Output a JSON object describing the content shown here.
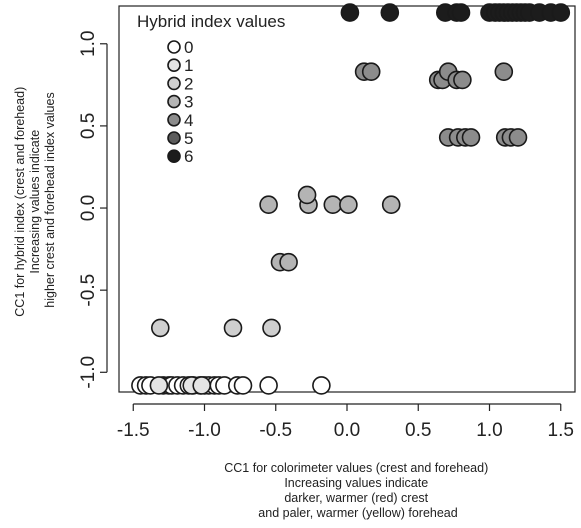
{
  "chart_data": {
    "type": "scatter",
    "title": "",
    "xlabel_lines": [
      "CC1 for colorimeter values (crest and forehead)",
      "Increasing values indicate",
      "darker, warmer (red) crest",
      "and paler, warmer (yellow) forehead"
    ],
    "ylabel_lines": [
      "CC1 for hybrid index (crest and forehead)",
      "Increasing values indicate",
      "higher crest and forehead index values"
    ],
    "xlim": [
      -1.6,
      1.6
    ],
    "ylim": [
      -1.12,
      1.23
    ],
    "xticks": [
      -1.5,
      -1.0,
      -0.5,
      0.0,
      0.5,
      1.0,
      1.5
    ],
    "xtick_labels": [
      "-1.5",
      "-1.0",
      "-0.5",
      "0.0",
      "0.5",
      "1.0",
      "1.5"
    ],
    "yticks": [
      -1.0,
      -0.5,
      0.0,
      0.5,
      1.0
    ],
    "ytick_labels": [
      "-1.0",
      "-0.5",
      "0.0",
      "0.5",
      "1.0"
    ],
    "grid": false,
    "legend": {
      "title": "Hybrid index values",
      "placement": "top-left",
      "entries": [
        {
          "label": "0",
          "color": "#ffffff"
        },
        {
          "label": "1",
          "color": "#e4e4e4"
        },
        {
          "label": "2",
          "color": "#cfcfcf"
        },
        {
          "label": "3",
          "color": "#b4b4b4"
        },
        {
          "label": "4",
          "color": "#8c8c8c"
        },
        {
          "label": "5",
          "color": "#5c5c5c"
        },
        {
          "label": "6",
          "color": "#1c1c1c"
        }
      ]
    },
    "points": [
      {
        "x": -1.45,
        "y": -1.08,
        "c": 0
      },
      {
        "x": -1.41,
        "y": -1.08,
        "c": 0
      },
      {
        "x": -1.38,
        "y": -1.08,
        "c": 0
      },
      {
        "x": -1.29,
        "y": -1.08,
        "c": 0
      },
      {
        "x": -1.25,
        "y": -1.08,
        "c": 0
      },
      {
        "x": -1.23,
        "y": -1.08,
        "c": 0
      },
      {
        "x": -1.19,
        "y": -1.08,
        "c": 0
      },
      {
        "x": -1.15,
        "y": -1.08,
        "c": 0
      },
      {
        "x": -1.11,
        "y": -1.08,
        "c": 0
      },
      {
        "x": -1.08,
        "y": -1.08,
        "c": 0
      },
      {
        "x": -1.03,
        "y": -1.08,
        "c": 0
      },
      {
        "x": -1.0,
        "y": -1.08,
        "c": 0
      },
      {
        "x": -0.97,
        "y": -1.08,
        "c": 0
      },
      {
        "x": -0.93,
        "y": -1.08,
        "c": 0
      },
      {
        "x": -0.9,
        "y": -1.08,
        "c": 0
      },
      {
        "x": -0.86,
        "y": -1.08,
        "c": 0
      },
      {
        "x": -0.77,
        "y": -1.08,
        "c": 0
      },
      {
        "x": -0.73,
        "y": -1.08,
        "c": 0
      },
      {
        "x": -0.55,
        "y": -1.08,
        "c": 0
      },
      {
        "x": -0.18,
        "y": -1.08,
        "c": 0
      },
      {
        "x": -1.32,
        "y": -1.08,
        "c": 1
      },
      {
        "x": -1.09,
        "y": -1.08,
        "c": 1
      },
      {
        "x": -1.02,
        "y": -1.08,
        "c": 1
      },
      {
        "x": -1.31,
        "y": -0.73,
        "c": 2
      },
      {
        "x": -0.8,
        "y": -0.73,
        "c": 2
      },
      {
        "x": -0.53,
        "y": -0.73,
        "c": 2
      },
      {
        "x": -0.47,
        "y": -0.33,
        "c": 3
      },
      {
        "x": -0.41,
        "y": -0.33,
        "c": 3
      },
      {
        "x": -0.55,
        "y": 0.02,
        "c": 3
      },
      {
        "x": -0.27,
        "y": 0.02,
        "c": 3
      },
      {
        "x": -0.1,
        "y": 0.02,
        "c": 3
      },
      {
        "x": 0.01,
        "y": 0.02,
        "c": 3
      },
      {
        "x": 0.31,
        "y": 0.02,
        "c": 3
      },
      {
        "x": -0.28,
        "y": 0.08,
        "c": 3
      },
      {
        "x": 0.12,
        "y": 0.83,
        "c": 4
      },
      {
        "x": 0.17,
        "y": 0.83,
        "c": 4
      },
      {
        "x": 0.64,
        "y": 0.78,
        "c": 4
      },
      {
        "x": 0.67,
        "y": 0.78,
        "c": 4
      },
      {
        "x": 0.71,
        "y": 0.83,
        "c": 4
      },
      {
        "x": 0.77,
        "y": 0.78,
        "c": 4
      },
      {
        "x": 0.81,
        "y": 0.78,
        "c": 4
      },
      {
        "x": 1.1,
        "y": 0.83,
        "c": 4
      },
      {
        "x": 0.71,
        "y": 0.43,
        "c": 4
      },
      {
        "x": 0.78,
        "y": 0.43,
        "c": 4
      },
      {
        "x": 0.83,
        "y": 0.43,
        "c": 4
      },
      {
        "x": 0.87,
        "y": 0.43,
        "c": 4
      },
      {
        "x": 1.11,
        "y": 0.43,
        "c": 4
      },
      {
        "x": 1.15,
        "y": 0.43,
        "c": 4
      },
      {
        "x": 1.2,
        "y": 0.43,
        "c": 4
      },
      {
        "x": 0.02,
        "y": 1.19,
        "c": 6
      },
      {
        "x": 0.3,
        "y": 1.19,
        "c": 6
      },
      {
        "x": 0.69,
        "y": 1.19,
        "c": 6
      },
      {
        "x": 0.77,
        "y": 1.19,
        "c": 6
      },
      {
        "x": 0.8,
        "y": 1.19,
        "c": 6
      },
      {
        "x": 1.0,
        "y": 1.19,
        "c": 6
      },
      {
        "x": 1.04,
        "y": 1.19,
        "c": 6
      },
      {
        "x": 1.07,
        "y": 1.19,
        "c": 6
      },
      {
        "x": 1.1,
        "y": 1.19,
        "c": 6
      },
      {
        "x": 1.13,
        "y": 1.19,
        "c": 6
      },
      {
        "x": 1.16,
        "y": 1.19,
        "c": 6
      },
      {
        "x": 1.19,
        "y": 1.19,
        "c": 6
      },
      {
        "x": 1.22,
        "y": 1.19,
        "c": 6
      },
      {
        "x": 1.25,
        "y": 1.19,
        "c": 6
      },
      {
        "x": 1.28,
        "y": 1.19,
        "c": 6
      },
      {
        "x": 1.35,
        "y": 1.19,
        "c": 6
      },
      {
        "x": 1.43,
        "y": 1.19,
        "c": 6
      },
      {
        "x": 1.5,
        "y": 1.19,
        "c": 6
      }
    ]
  }
}
